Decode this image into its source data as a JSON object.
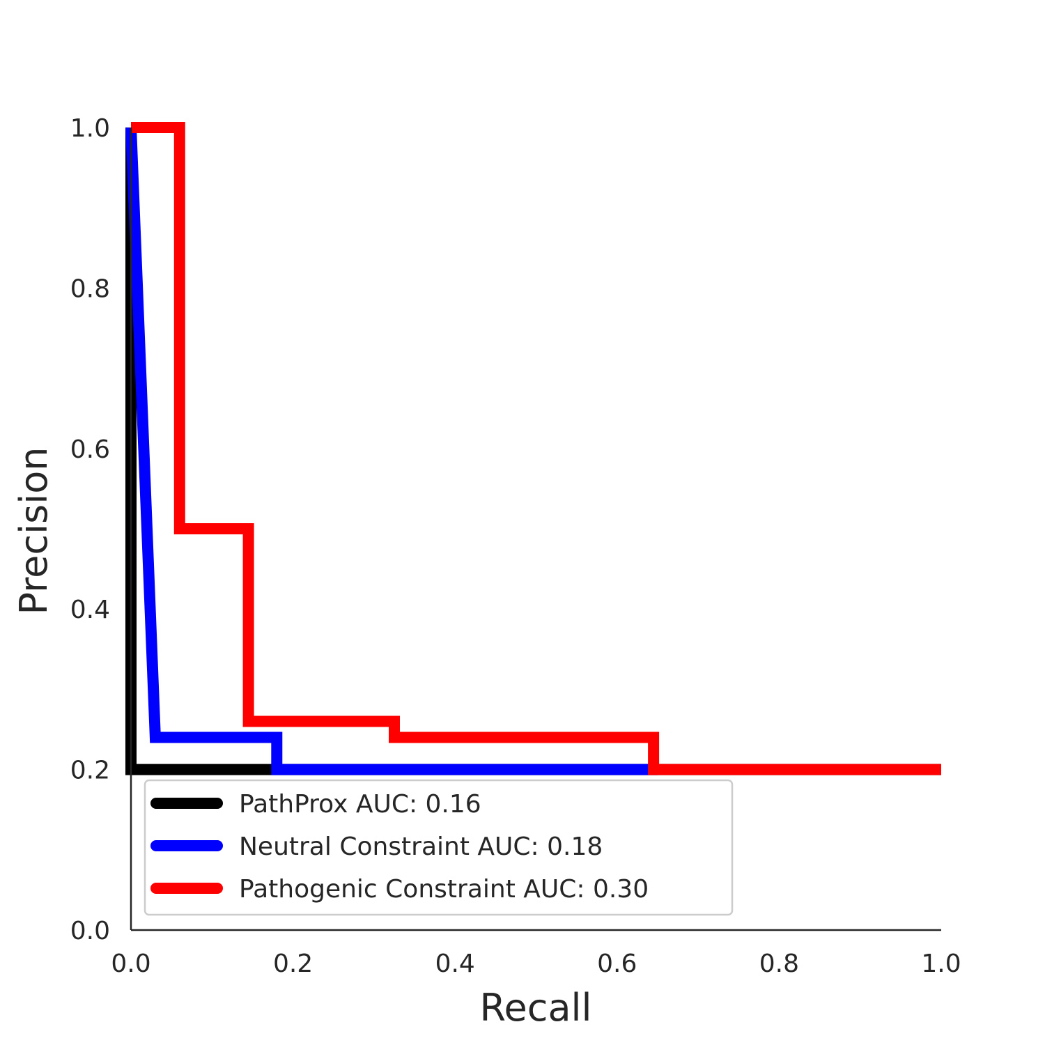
{
  "chart_data": {
    "type": "line",
    "title": "",
    "xlabel": "Recall",
    "ylabel": "Precision",
    "xlim": [
      0.0,
      1.0
    ],
    "ylim": [
      0.0,
      1.0
    ],
    "x_ticks": [
      "0.0",
      "0.2",
      "0.4",
      "0.6",
      "0.8",
      "1.0"
    ],
    "y_ticks": [
      "0.0",
      "0.2",
      "0.4",
      "0.6",
      "0.8",
      "1.0"
    ],
    "grid": false,
    "legend_position": "lower-left",
    "series": [
      {
        "name": "PathProx AUC:  0.16",
        "color": "#000000",
        "x": [
          0.0,
          0.0,
          0.0,
          1.0
        ],
        "y": [
          1.0,
          0.8,
          0.2,
          0.2
        ]
      },
      {
        "name": "Neutral Constraint AUC:  0.18",
        "color": "#0000ff",
        "x": [
          0.0,
          0.03,
          0.18,
          0.18,
          0.65
        ],
        "y": [
          1.0,
          0.24,
          0.24,
          0.2,
          0.2
        ]
      },
      {
        "name": "Pathogenic Constraint AUC:  0.30",
        "color": "#ff0000",
        "x": [
          0.0,
          0.06,
          0.06,
          0.145,
          0.145,
          0.325,
          0.325,
          0.645,
          0.645,
          1.0
        ],
        "y": [
          1.0,
          1.0,
          0.5,
          0.5,
          0.26,
          0.26,
          0.24,
          0.24,
          0.2,
          0.2
        ]
      }
    ]
  }
}
